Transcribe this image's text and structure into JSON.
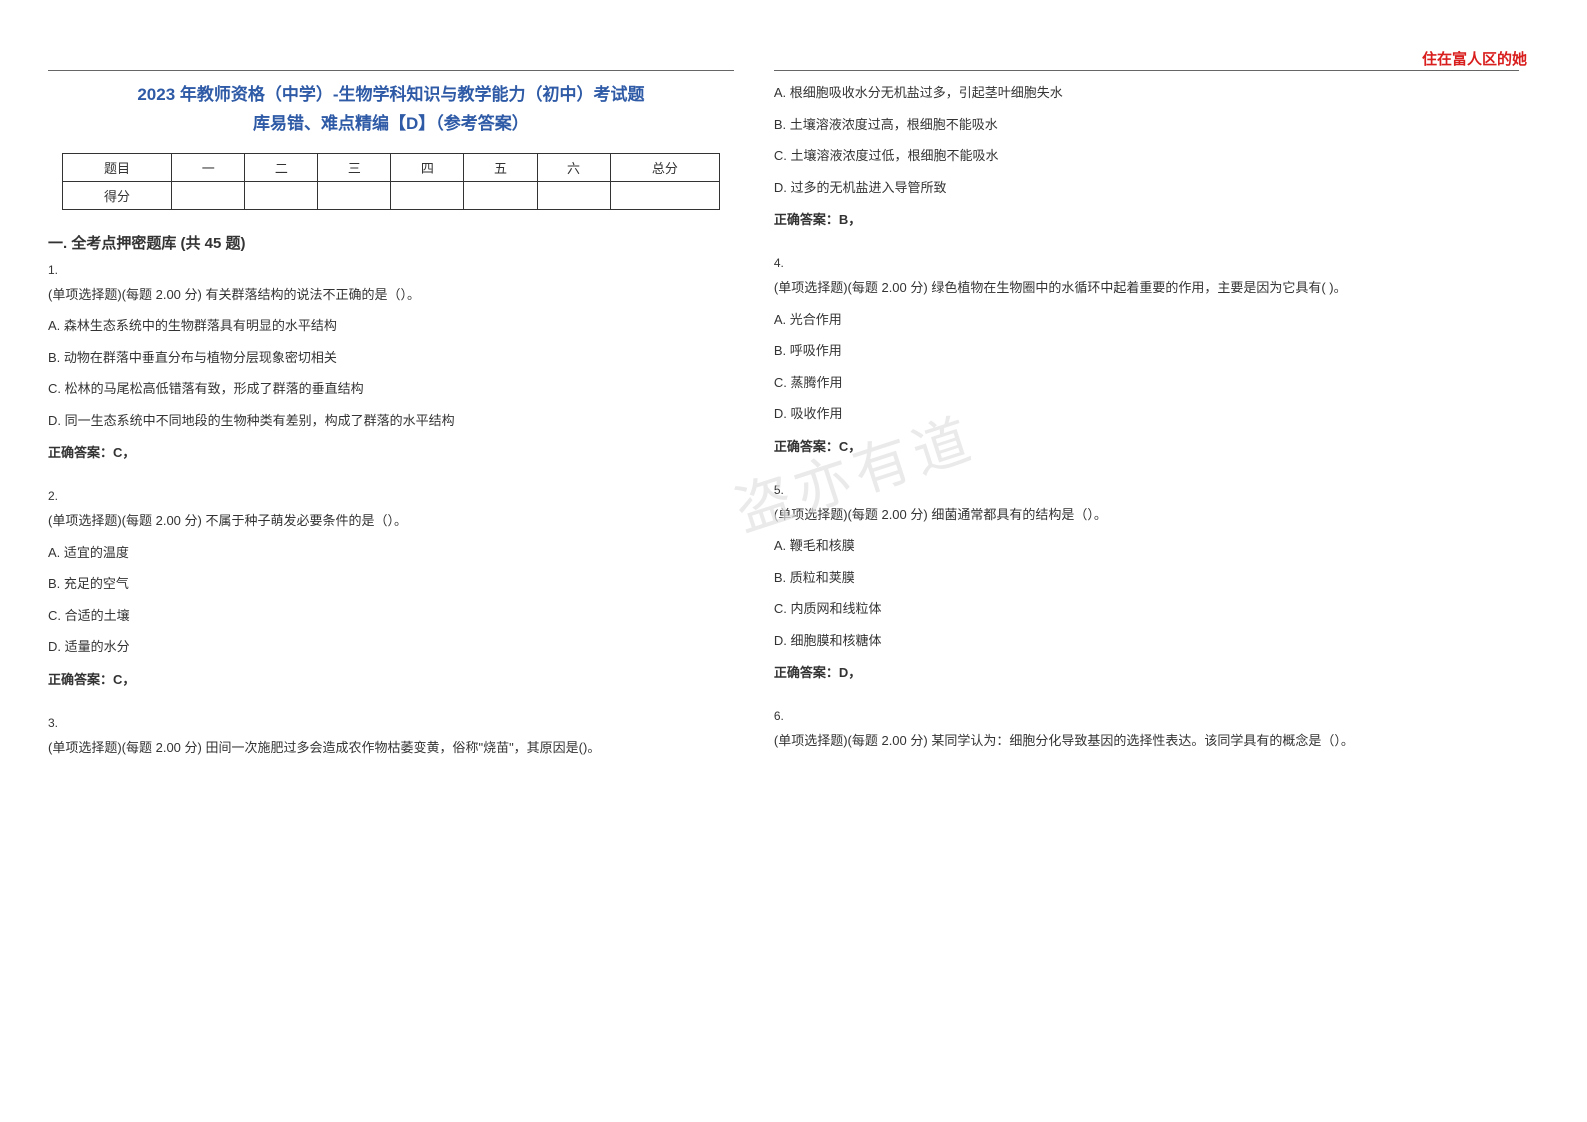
{
  "header": {
    "corner_text": "住在富人区的她",
    "title_line1": "2023 年教师资格（中学）-生物学科知识与教学能力（初中）考试题",
    "title_line2": "库易错、难点精编【D】（参考答案）"
  },
  "watermark": "盗亦有道",
  "score_table": {
    "row1": [
      "题目",
      "一",
      "二",
      "三",
      "四",
      "五",
      "六",
      "总分"
    ],
    "row2_label": "得分"
  },
  "section": {
    "title": "一. 全考点押密题库 (共 45 题)"
  },
  "left": {
    "q1": {
      "num": "1.",
      "text": "(单项选择题)(每题 2.00 分) 有关群落结构的说法不正确的是（）。",
      "a": "A. 森林生态系统中的生物群落具有明显的水平结构",
      "b": "B. 动物在群落中垂直分布与植物分层现象密切相关",
      "c": "C. 松林的马尾松高低错落有致，形成了群落的垂直结构",
      "d": "D. 同一生态系统中不同地段的生物种类有差别，构成了群落的水平结构",
      "ans": "正确答案：C，"
    },
    "q2": {
      "num": "2.",
      "text": "(单项选择题)(每题 2.00 分) 不属于种子萌发必要条件的是（）。",
      "a": "A. 适宜的温度",
      "b": "B. 充足的空气",
      "c": "C. 合适的土壤",
      "d": "D. 适量的水分",
      "ans": "正确答案：C，"
    },
    "q3": {
      "num": "3.",
      "text": "(单项选择题)(每题 2.00 分) 田间一次施肥过多会造成农作物枯萎变黄，俗称\"烧苗\"，其原因是()。"
    }
  },
  "right": {
    "q3opts": {
      "a": "A. 根细胞吸收水分无机盐过多，引起茎叶细胞失水",
      "b": "B. 土壤溶液浓度过高，根细胞不能吸水",
      "c": "C. 土壤溶液浓度过低，根细胞不能吸水",
      "d": "D. 过多的无机盐进入导管所致",
      "ans": "正确答案：B，"
    },
    "q4": {
      "num": "4.",
      "text": "(单项选择题)(每题 2.00 分) 绿色植物在生物圈中的水循环中起着重要的作用，主要是因为它具有( )。",
      "a": "A. 光合作用",
      "b": "B. 呼吸作用",
      "c": "C. 蒸腾作用",
      "d": "D. 吸收作用",
      "ans": "正确答案：C，"
    },
    "q5": {
      "num": "5.",
      "text": "(单项选择题)(每题 2.00 分) 细菌通常都具有的结构是（）。",
      "a": "A. 鞭毛和核膜",
      "b": "B. 质粒和荚膜",
      "c": "C. 内质网和线粒体",
      "d": "D. 细胞膜和核糖体",
      "ans": "正确答案：D，"
    },
    "q6": {
      "num": "6.",
      "text": "(单项选择题)(每题 2.00 分) 某同学认为：细胞分化导致基因的选择性表达。该同学具有的概念是（）。"
    }
  },
  "colors": {
    "title_color": "#2e5aa6",
    "corner_color": "#d91e1e",
    "text_color": "#333333",
    "border_color": "#333333",
    "watermark_color": "#e2e2e2",
    "background": "#ffffff"
  },
  "typography": {
    "title_fontsize": 17,
    "body_fontsize": 13,
    "section_fontsize": 15,
    "corner_fontsize": 15
  }
}
